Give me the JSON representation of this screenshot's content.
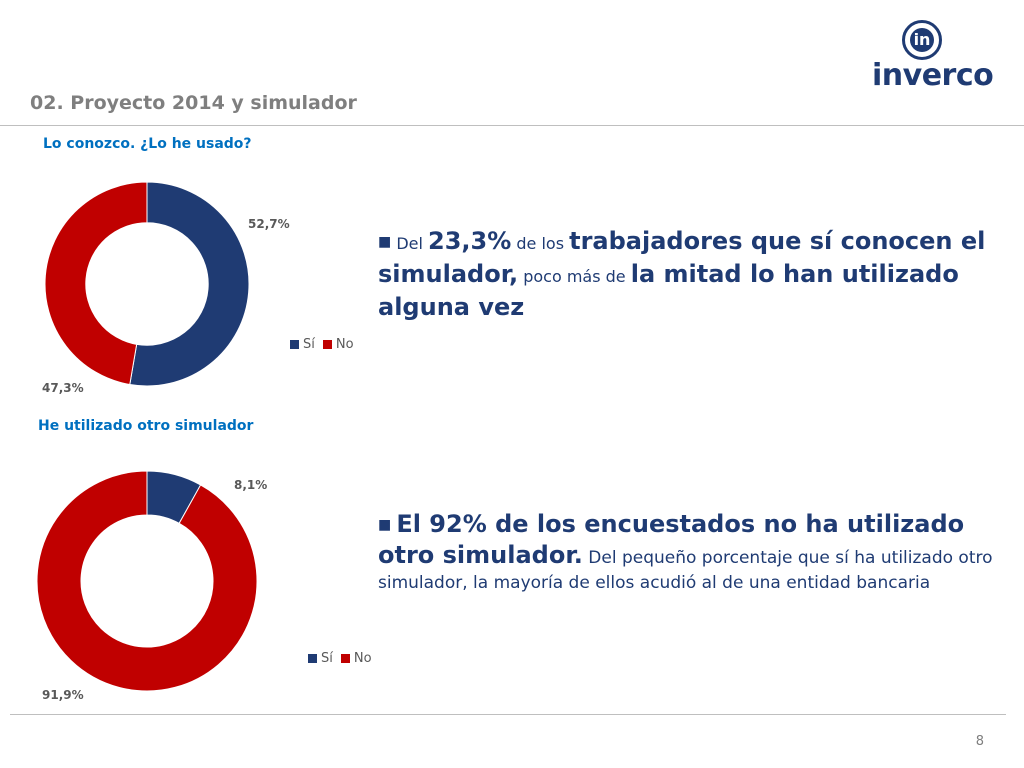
{
  "slide": {
    "title": "02. Proyecto 2014 y simulador",
    "page_number": "8",
    "logo_text": "inverco",
    "logo_mark": "in"
  },
  "colors": {
    "si": "#1f3b73",
    "no": "#c00000",
    "accent_title": "#0070c0"
  },
  "chart_data": [
    {
      "type": "pie",
      "donut": true,
      "title": "Lo conozco. ¿Lo he usado?",
      "categories": [
        "Sí",
        "No"
      ],
      "values": [
        52.7,
        47.3
      ],
      "value_labels": [
        "52,7%",
        "47,3%"
      ],
      "legend": "bottom-right"
    },
    {
      "type": "pie",
      "donut": true,
      "title": "He utilizado otro simulador",
      "categories": [
        "Sí",
        "No"
      ],
      "values": [
        8.1,
        91.9
      ],
      "value_labels": [
        "8,1%",
        "91,9%"
      ],
      "legend": "bottom-right"
    }
  ],
  "text1": {
    "p1": "Del ",
    "p2": "23,3%",
    "p3": " de los ",
    "p4": "trabajadores que sí conocen el simulador,",
    "p5": " poco más de ",
    "p6": "la mitad lo han utilizado alguna vez"
  },
  "text2": {
    "p1": "El 92% de los encuestados no ha utilizado otro simulador.",
    "p2": " Del pequeño porcentaje que sí ha utilizado otro simulador, la mayoría de ellos acudió al de una entidad bancaria"
  }
}
